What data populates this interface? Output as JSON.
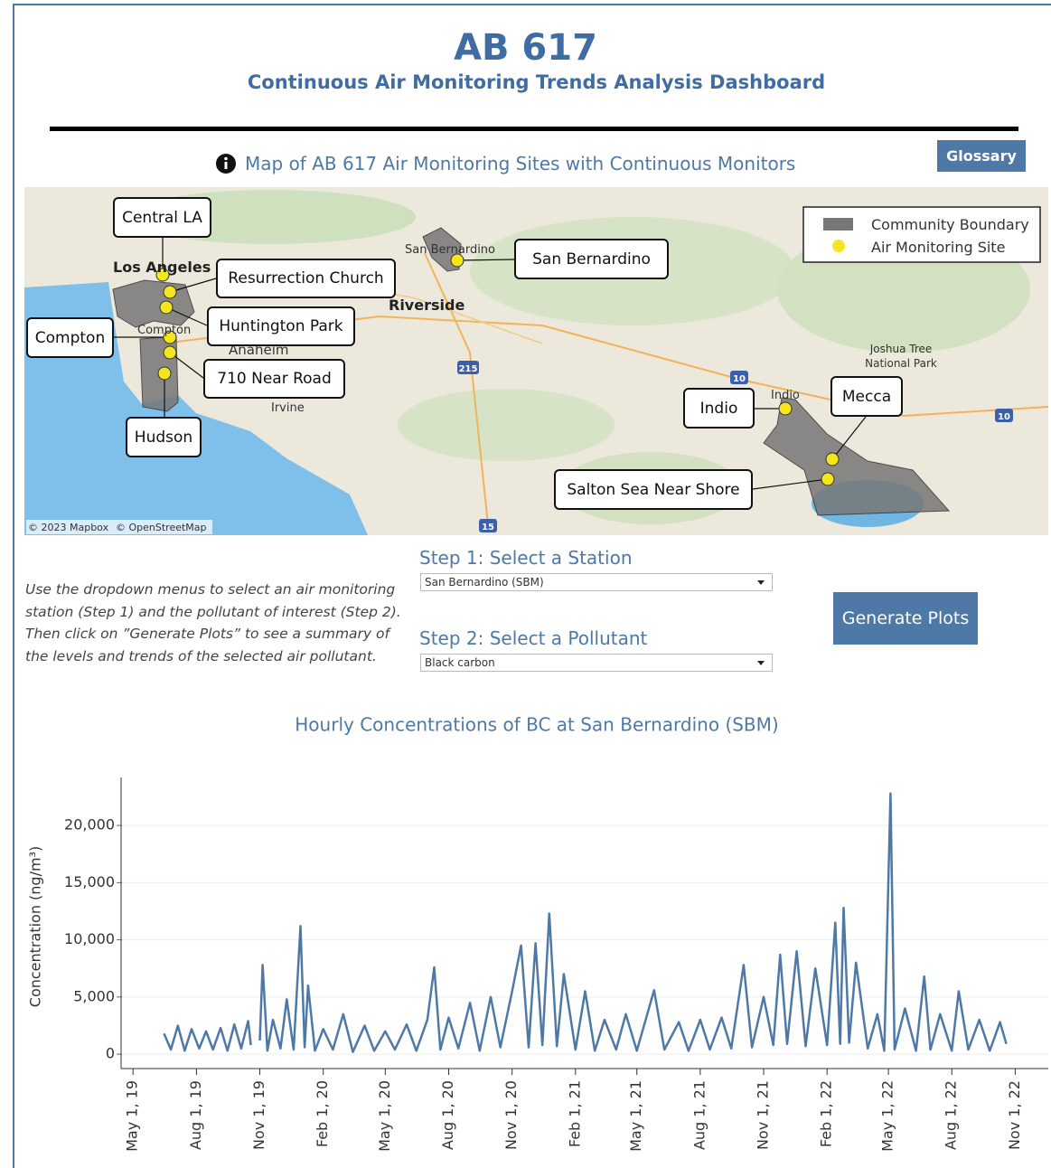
{
  "header": {
    "title": "AB 617",
    "subtitle": "Continuous Air Monitoring Trends Analysis Dashboard"
  },
  "glossary_button": "Glossary",
  "map": {
    "title": "Map of AB 617 Air Monitoring Sites with Continuous Monitors",
    "stations": [
      "Central LA",
      "Resurrection Church",
      "Huntington Park",
      "Compton",
      "710 Near Road",
      "Hudson",
      "San Bernardino",
      "Indio",
      "Mecca",
      "Salton Sea Near Shore"
    ],
    "places": [
      "Los Angeles",
      "San Bernardino",
      "Riverside",
      "Compton",
      "Anaheim",
      "Irvine",
      "Indio",
      "Joshua Tree",
      "National Park"
    ],
    "highways": [
      "215",
      "10",
      "10",
      "15"
    ],
    "legend": [
      "Community Boundary",
      "Air Monitoring Site"
    ],
    "attribution": [
      "© 2023 Mapbox",
      "© OpenStreetMap"
    ]
  },
  "controls": {
    "step1_label": "Step 1: Select a Station",
    "station": "San Bernardino (SBM)",
    "step2_label": "Step 2: Select a Pollutant",
    "pollutant": "Black carbon",
    "instructions": "Use the dropdown menus to select an air monitoring station (Step 1) and the pollutant of interest (Step 2). Then click on ”Generate Plots” to see a summary of the levels and trends of the selected air pollutant.",
    "button": "Generate Plots"
  },
  "chart_data": {
    "type": "line",
    "title": "Hourly Concentrations of BC at San Bernardino (SBM)",
    "y_label": "Concentration (ng/m³)",
    "color": "#4e79a7",
    "grid": true,
    "xlim": [
      "2019-04-15",
      "2022-12-19"
    ],
    "xticks": [
      {
        "value": "2019-05-01",
        "label": "May 1, 19"
      },
      {
        "value": "2019-08-01",
        "label": "Aug 1, 19"
      },
      {
        "value": "2019-11-01",
        "label": "Nov 1, 19"
      },
      {
        "value": "2020-02-01",
        "label": "Feb 1, 20"
      },
      {
        "value": "2020-05-01",
        "label": "May 1, 20"
      },
      {
        "value": "2020-08-01",
        "label": "Aug 1, 20"
      },
      {
        "value": "2020-11-01",
        "label": "Nov 1, 20"
      },
      {
        "value": "2021-02-01",
        "label": "Feb 1, 21"
      },
      {
        "value": "2021-05-01",
        "label": "May 1, 21"
      },
      {
        "value": "2021-08-01",
        "label": "Aug 1, 21"
      },
      {
        "value": "2021-11-01",
        "label": "Nov 1, 21"
      },
      {
        "value": "2022-02-01",
        "label": "Feb 1, 22"
      },
      {
        "value": "2022-05-01",
        "label": "May 1, 22"
      },
      {
        "value": "2022-08-01",
        "label": "Aug 1, 22"
      },
      {
        "value": "2022-11-01",
        "label": "Nov 1, 22"
      }
    ],
    "ylim": [
      -1100,
      24200
    ],
    "yticks": [
      0,
      {
        "value": 5000,
        "label": "5,000"
      },
      {
        "value": 10000,
        "label": "10,000"
      },
      {
        "value": 15000,
        "label": "15,000"
      },
      {
        "value": 20000,
        "label": "20,000"
      }
    ],
    "x": [
      "2019-06-15",
      "2019-06-25",
      "2019-07-05",
      "2019-07-15",
      "2019-07-25",
      "2019-08-05",
      "2019-08-15",
      "2019-08-25",
      "2019-09-05",
      "2019-09-15",
      "2019-09-25",
      "2019-10-05",
      "2019-10-15",
      "2019-10-19",
      "2019-10-25",
      "2019-11-01",
      "2019-11-05",
      "2019-11-12",
      "2019-11-20",
      "2019-12-01",
      "2019-12-10",
      "2019-12-20",
      "2019-12-30",
      "2020-01-05",
      "2020-01-10",
      "2020-01-20",
      "2020-02-01",
      "2020-02-15",
      "2020-03-01",
      "2020-03-15",
      "2020-04-01",
      "2020-04-15",
      "2020-05-01",
      "2020-05-15",
      "2020-06-01",
      "2020-06-15",
      "2020-07-01",
      "2020-07-11",
      "2020-07-20",
      "2020-08-01",
      "2020-08-15",
      "2020-09-01",
      "2020-09-15",
      "2020-10-01",
      "2020-10-15",
      "2020-11-01",
      "2020-11-14",
      "2020-11-25",
      "2020-12-05",
      "2020-12-15",
      "2020-12-25",
      "2021-01-05",
      "2021-01-15",
      "2021-02-01",
      "2021-02-15",
      "2021-03-01",
      "2021-03-15",
      "2021-04-01",
      "2021-04-15",
      "2021-05-01",
      "2021-05-26",
      "2021-06-10",
      "2021-07-01",
      "2021-07-15",
      "2021-08-01",
      "2021-08-15",
      "2021-09-01",
      "2021-09-15",
      "2021-10-03",
      "2021-10-15",
      "2021-11-01",
      "2021-11-15",
      "2021-11-25",
      "2021-12-05",
      "2021-12-19",
      "2022-01-01",
      "2022-01-15",
      "2022-02-01",
      "2022-02-13",
      "2022-02-20",
      "2022-02-25",
      "2022-03-05",
      "2022-03-15",
      "2022-04-01",
      "2022-04-15",
      "2022-04-25",
      "2022-05-04",
      "2022-05-10",
      "2022-05-25",
      "2022-06-10",
      "2022-06-22",
      "2022-07-01",
      "2022-07-15",
      "2022-08-01",
      "2022-08-11",
      "2022-08-25",
      "2022-09-10",
      "2022-09-25",
      "2022-10-10",
      "2022-10-19"
    ],
    "values": [
      1800,
      400,
      2500,
      300,
      2200,
      500,
      2000,
      400,
      2300,
      300,
      2600,
      500,
      2900,
      800,
      null,
      1200,
      7800,
      300,
      3000,
      500,
      4800,
      400,
      11200,
      600,
      6000,
      300,
      2200,
      400,
      3500,
      200,
      2500,
      300,
      2000,
      400,
      2600,
      300,
      3000,
      7600,
      400,
      3200,
      500,
      4500,
      300,
      5000,
      600,
      5500,
      9500,
      600,
      9700,
      800,
      12300,
      700,
      7000,
      400,
      5500,
      300,
      3000,
      400,
      3500,
      300,
      5600,
      400,
      2800,
      300,
      3000,
      400,
      3200,
      500,
      7800,
      600,
      5000,
      800,
      8700,
      900,
      9000,
      700,
      7500,
      800,
      11500,
      900,
      12800,
      1000,
      8000,
      500,
      3500,
      300,
      22800,
      400,
      4000,
      300,
      6800,
      400,
      3500,
      300,
      5500,
      400,
      3000,
      300,
      2800,
      900
    ]
  }
}
